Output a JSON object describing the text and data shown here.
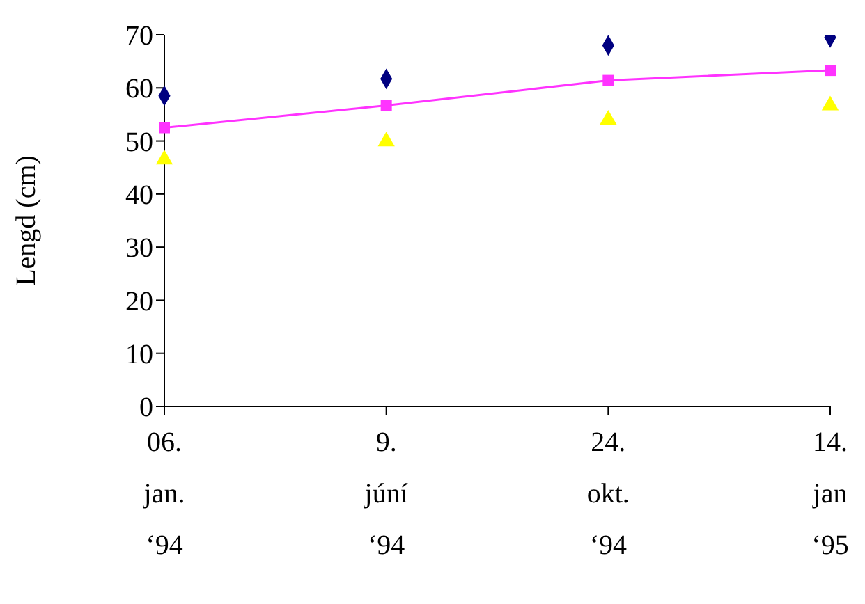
{
  "chart_data": {
    "type": "scatter",
    "ylabel": "Lengd (cm)",
    "categories": [
      "06.\njan.\n‘94",
      "9.\njúní\n‘94",
      "24.\nokt.\n‘94",
      "14.\njan\n‘95"
    ],
    "series": [
      {
        "color": "#000080",
        "marker": "diamond",
        "values": [
          58.5,
          61.7,
          68,
          69.5
        ]
      },
      {
        "type": "line",
        "color": "#ff33ff",
        "marker": "square",
        "values": [
          52.5,
          56.7,
          61.4,
          63.3
        ]
      },
      {
        "color": "#ffff00",
        "marker": "triangle",
        "values": [
          46.5,
          49.9,
          54,
          56.7
        ]
      }
    ],
    "ylim": [
      0,
      70
    ],
    "yticks": [
      0,
      10,
      20,
      30,
      40,
      50,
      60,
      70
    ],
    "grid": false,
    "legend": false
  }
}
